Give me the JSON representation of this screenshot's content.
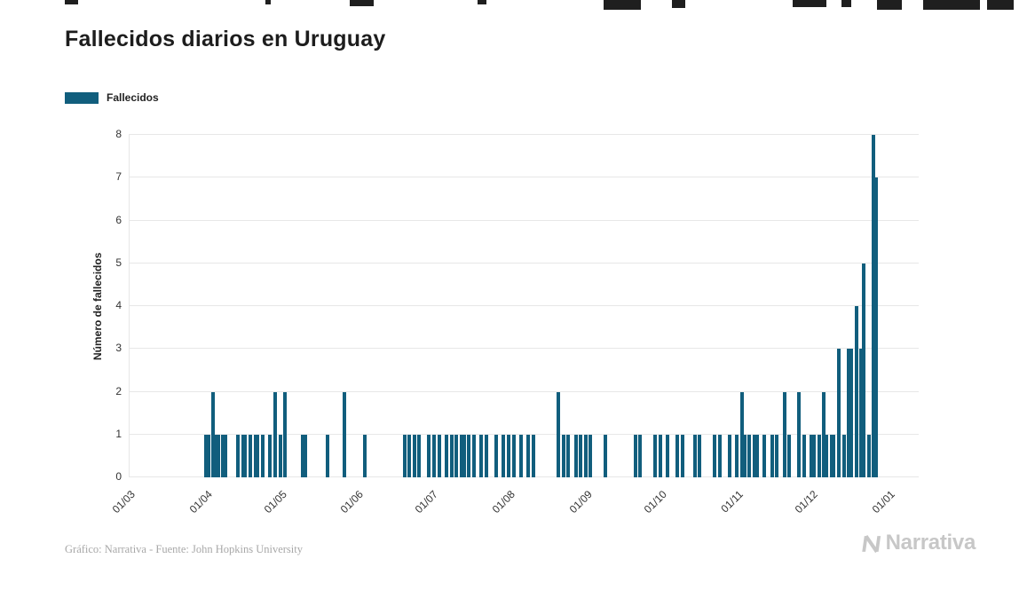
{
  "title": "Fallecidos diarios en Uruguay",
  "legend": {
    "label": "Fallecidos"
  },
  "y_axis": {
    "title": "Número de fallecidos",
    "ticks": [
      0,
      1,
      2,
      3,
      4,
      5,
      6,
      7,
      8
    ]
  },
  "x_axis": {
    "ticks": [
      "01/03",
      "01/04",
      "01/05",
      "01/06",
      "01/07",
      "01/08",
      "01/09",
      "01/10",
      "01/11",
      "01/12",
      "01/01"
    ]
  },
  "footer": {
    "credit": "Gráfico: Narrativa - Fuente: John Hopkins University",
    "brand": "Narrativa"
  },
  "colors": {
    "bar": "#115e7d",
    "grid": "#e7e7e7",
    "title_text": "#1d1d1d",
    "axis_text": "#333333",
    "credit_text": "#a8a8a8",
    "brand_text": "#c7c7c7"
  },
  "chart_data": {
    "type": "bar",
    "title": "Fallecidos diarios en Uruguay",
    "xlabel": "",
    "ylabel": "Número de fallecidos",
    "ylim": [
      0,
      8
    ],
    "grid": true,
    "legend_position": "top-left",
    "x_tick_labels": [
      "01/03",
      "01/04",
      "01/05",
      "01/06",
      "01/07",
      "01/08",
      "01/09",
      "01/10",
      "01/11",
      "01/12",
      "01/01"
    ],
    "points": [
      {
        "date": "01/04",
        "value": 1
      },
      {
        "date": "02/04",
        "value": 1
      },
      {
        "date": "04/04",
        "value": 2
      },
      {
        "date": "05/04",
        "value": 1
      },
      {
        "date": "06/04",
        "value": 1
      },
      {
        "date": "08/04",
        "value": 1
      },
      {
        "date": "09/04",
        "value": 1
      },
      {
        "date": "14/04",
        "value": 1
      },
      {
        "date": "16/04",
        "value": 1
      },
      {
        "date": "17/04",
        "value": 1
      },
      {
        "date": "19/04",
        "value": 1
      },
      {
        "date": "21/04",
        "value": 1
      },
      {
        "date": "22/04",
        "value": 1
      },
      {
        "date": "24/04",
        "value": 1
      },
      {
        "date": "27/04",
        "value": 1
      },
      {
        "date": "29/04",
        "value": 2
      },
      {
        "date": "01/05",
        "value": 1
      },
      {
        "date": "03/05",
        "value": 2
      },
      {
        "date": "10/05",
        "value": 1
      },
      {
        "date": "11/05",
        "value": 1
      },
      {
        "date": "20/05",
        "value": 1
      },
      {
        "date": "27/05",
        "value": 2
      },
      {
        "date": "04/06",
        "value": 1
      },
      {
        "date": "20/06",
        "value": 1
      },
      {
        "date": "22/06",
        "value": 1
      },
      {
        "date": "24/06",
        "value": 1
      },
      {
        "date": "26/06",
        "value": 1
      },
      {
        "date": "30/06",
        "value": 1
      },
      {
        "date": "02/07",
        "value": 1
      },
      {
        "date": "04/07",
        "value": 1
      },
      {
        "date": "07/07",
        "value": 1
      },
      {
        "date": "09/07",
        "value": 1
      },
      {
        "date": "11/07",
        "value": 1
      },
      {
        "date": "13/07",
        "value": 1
      },
      {
        "date": "14/07",
        "value": 1
      },
      {
        "date": "16/07",
        "value": 1
      },
      {
        "date": "18/07",
        "value": 1
      },
      {
        "date": "21/07",
        "value": 1
      },
      {
        "date": "23/07",
        "value": 1
      },
      {
        "date": "27/07",
        "value": 1
      },
      {
        "date": "30/07",
        "value": 1
      },
      {
        "date": "01/08",
        "value": 1
      },
      {
        "date": "03/08",
        "value": 1
      },
      {
        "date": "06/08",
        "value": 1
      },
      {
        "date": "09/08",
        "value": 1
      },
      {
        "date": "11/08",
        "value": 1
      },
      {
        "date": "21/08",
        "value": 2
      },
      {
        "date": "23/08",
        "value": 1
      },
      {
        "date": "25/08",
        "value": 1
      },
      {
        "date": "28/08",
        "value": 1
      },
      {
        "date": "30/08",
        "value": 1
      },
      {
        "date": "01/09",
        "value": 1
      },
      {
        "date": "03/09",
        "value": 1
      },
      {
        "date": "09/09",
        "value": 1
      },
      {
        "date": "21/09",
        "value": 1
      },
      {
        "date": "23/09",
        "value": 1
      },
      {
        "date": "29/09",
        "value": 1
      },
      {
        "date": "01/10",
        "value": 1
      },
      {
        "date": "04/10",
        "value": 1
      },
      {
        "date": "08/10",
        "value": 1
      },
      {
        "date": "10/10",
        "value": 1
      },
      {
        "date": "15/10",
        "value": 1
      },
      {
        "date": "17/10",
        "value": 1
      },
      {
        "date": "23/10",
        "value": 1
      },
      {
        "date": "25/10",
        "value": 1
      },
      {
        "date": "29/10",
        "value": 1
      },
      {
        "date": "01/11",
        "value": 1
      },
      {
        "date": "03/11",
        "value": 2
      },
      {
        "date": "04/11",
        "value": 1
      },
      {
        "date": "06/11",
        "value": 1
      },
      {
        "date": "08/11",
        "value": 1
      },
      {
        "date": "09/11",
        "value": 1
      },
      {
        "date": "12/11",
        "value": 1
      },
      {
        "date": "15/11",
        "value": 1
      },
      {
        "date": "17/11",
        "value": 1
      },
      {
        "date": "20/11",
        "value": 2
      },
      {
        "date": "22/11",
        "value": 1
      },
      {
        "date": "26/11",
        "value": 2
      },
      {
        "date": "28/11",
        "value": 1
      },
      {
        "date": "01/12",
        "value": 1
      },
      {
        "date": "02/12",
        "value": 1
      },
      {
        "date": "04/12",
        "value": 1
      },
      {
        "date": "06/12",
        "value": 2
      },
      {
        "date": "07/12",
        "value": 1
      },
      {
        "date": "09/12",
        "value": 1
      },
      {
        "date": "10/12",
        "value": 1
      },
      {
        "date": "12/12",
        "value": 3
      },
      {
        "date": "14/12",
        "value": 1
      },
      {
        "date": "16/12",
        "value": 3
      },
      {
        "date": "17/12",
        "value": 3
      },
      {
        "date": "19/12",
        "value": 4
      },
      {
        "date": "21/12",
        "value": 3
      },
      {
        "date": "22/12",
        "value": 5
      },
      {
        "date": "24/12",
        "value": 1
      },
      {
        "date": "26/12",
        "value": 8
      },
      {
        "date": "27/12",
        "value": 7
      }
    ]
  }
}
